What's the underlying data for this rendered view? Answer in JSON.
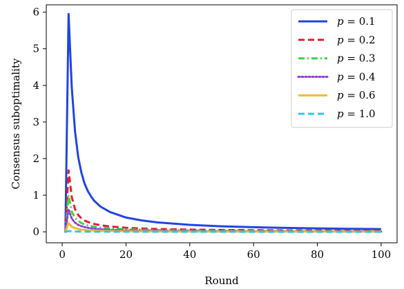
{
  "chart_data": {
    "type": "line",
    "xlabel": "Round",
    "ylabel": "Consensus suboptimality",
    "xlim": [
      -5,
      105
    ],
    "ylim": [
      -0.3,
      6.2
    ],
    "xticks": [
      0,
      20,
      40,
      60,
      80,
      100
    ],
    "yticks": [
      0,
      1,
      2,
      3,
      4,
      5,
      6
    ],
    "grid": false,
    "legend_position": "top-right",
    "x": [
      1,
      2,
      3,
      4,
      5,
      6,
      7,
      8,
      9,
      10,
      12,
      15,
      20,
      25,
      30,
      40,
      50,
      60,
      70,
      80,
      90,
      100
    ],
    "series": [
      {
        "name": "p = 0.1",
        "label_p": "p",
        "label_value": "0.1",
        "color": "#1f45e0",
        "dash": "solid",
        "values": [
          0.0,
          5.95,
          3.95,
          2.75,
          2.05,
          1.62,
          1.32,
          1.12,
          0.97,
          0.85,
          0.69,
          0.54,
          0.39,
          0.31,
          0.255,
          0.19,
          0.15,
          0.125,
          0.107,
          0.093,
          0.082,
          0.074
        ]
      },
      {
        "name": "p = 0.2",
        "label_p": "p",
        "label_value": "0.2",
        "color": "#e0202a",
        "dash": "dashed",
        "values": [
          0.0,
          1.68,
          0.95,
          0.62,
          0.46,
          0.37,
          0.31,
          0.27,
          0.24,
          0.215,
          0.18,
          0.145,
          0.11,
          0.09,
          0.077,
          0.06,
          0.05,
          0.044,
          0.04,
          0.037,
          0.035,
          0.033
        ]
      },
      {
        "name": "p = 0.3",
        "label_p": "p",
        "label_value": "0.3",
        "color": "#3bd24a",
        "dash": "dashdot",
        "values": [
          0.0,
          1.0,
          0.55,
          0.38,
          0.3,
          0.24,
          0.2,
          0.175,
          0.155,
          0.14,
          0.115,
          0.09,
          0.07,
          0.055,
          0.045,
          0.035,
          0.028,
          0.024,
          0.021,
          0.019,
          0.017,
          0.016
        ]
      },
      {
        "name": "p = 0.4",
        "label_p": "p",
        "label_value": "0.4",
        "color": "#8a3fd1",
        "dash": "dotted",
        "values": [
          0.0,
          0.62,
          0.36,
          0.25,
          0.19,
          0.155,
          0.13,
          0.11,
          0.095,
          0.085,
          0.07,
          0.055,
          0.04,
          0.032,
          0.027,
          0.02,
          0.016,
          0.014,
          0.012,
          0.011,
          0.01,
          0.009
        ]
      },
      {
        "name": "p = 0.6",
        "label_p": "p",
        "label_value": "0.6",
        "color": "#f5b82e",
        "dash": "solid",
        "values": [
          0.0,
          0.24,
          0.14,
          0.1,
          0.075,
          0.06,
          0.05,
          0.043,
          0.038,
          0.034,
          0.028,
          0.022,
          0.016,
          0.013,
          0.011,
          0.008,
          0.007,
          0.006,
          0.005,
          0.005,
          0.004,
          0.004
        ]
      },
      {
        "name": "p = 1.0",
        "label_p": "p",
        "label_value": "1.0",
        "color": "#28c8e8",
        "dash": "dashed",
        "values": [
          0.0,
          0.02,
          0.012,
          0.009,
          0.007,
          0.006,
          0.005,
          0.004,
          0.004,
          0.003,
          0.003,
          0.002,
          0.002,
          0.001,
          0.001,
          0.001,
          0.001,
          0.0,
          0.0,
          0.0,
          0.0,
          0.0
        ]
      }
    ]
  }
}
